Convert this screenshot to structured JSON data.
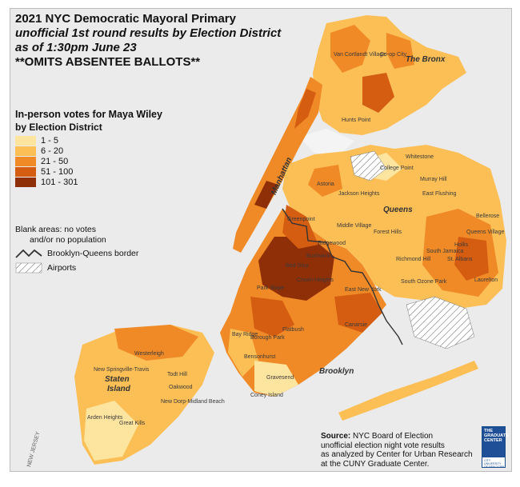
{
  "title": {
    "line1": "2021 NYC Democratic Mayoral Primary",
    "line2": "unofficial 1st round results by Election District",
    "line3": "as of 1:30pm June 23",
    "line4": "**OMITS ABSENTEE BALLOTS**"
  },
  "legend": {
    "heading1": "In-person votes for Maya Wiley",
    "heading2": "by Election District",
    "classes": [
      {
        "label": "1 - 5",
        "color": "#fde5a0"
      },
      {
        "label": "6 - 20",
        "color": "#fbbf56"
      },
      {
        "label": "21 - 50",
        "color": "#f08a26"
      },
      {
        "label": "51 - 100",
        "color": "#d55d12"
      },
      {
        "label": "101 - 301",
        "color": "#8f2f08"
      }
    ]
  },
  "notes": {
    "blank_line1": "Blank areas: no votes",
    "blank_line2": "and/or no population",
    "border_label": "Brooklyn-Queens border",
    "airports_label": "Airports"
  },
  "source": {
    "label": "Source:",
    "line1": "NYC Board of Election",
    "line2": "unofficial election night vote results",
    "line3": "as analyzed by Center for Urban Research",
    "line4": "at the CUNY Graduate Center."
  },
  "logo": {
    "text_main": "THE GRADUATE CENTER",
    "text_sub": "CITY UNIVERSITY OF NEW YORK"
  },
  "map_labels": {
    "bronx": "The Bronx",
    "manhattan": "Manhattan",
    "queens": "Queens",
    "brooklyn": "Brooklyn",
    "staten_island_1": "Staten",
    "staten_island_2": "Island",
    "new_jersey": "NEW JERSEY",
    "neighborhoods": [
      "Van Cortlandt Village",
      "Co-op City",
      "Hunts Point",
      "Whitestone",
      "College Point",
      "Murray Hill",
      "East Flushing",
      "Astoria",
      "Jackson Heights",
      "Middle Village",
      "Forest Hills",
      "Richmond Hill",
      "South Jamaica",
      "St. Albans",
      "Queens Village",
      "Hollis",
      "Bellerose",
      "Greenpoint",
      "Ridgewood",
      "Bushwick",
      "Bed-Stuy",
      "Crown Heights",
      "Park Slope",
      "East New York",
      "Canarsie",
      "Flatbush",
      "Bay Ridge",
      "Borough Park",
      "Bensonhurst",
      "Gravesend",
      "Coney Island",
      "Westerleigh",
      "New Springville-Travis",
      "Oakwood",
      "Arden Heights",
      "Great Kills",
      "Todt Hill",
      "New Dorp-Midland Beach",
      "South Ozone Park",
      "Laurelton"
    ]
  }
}
